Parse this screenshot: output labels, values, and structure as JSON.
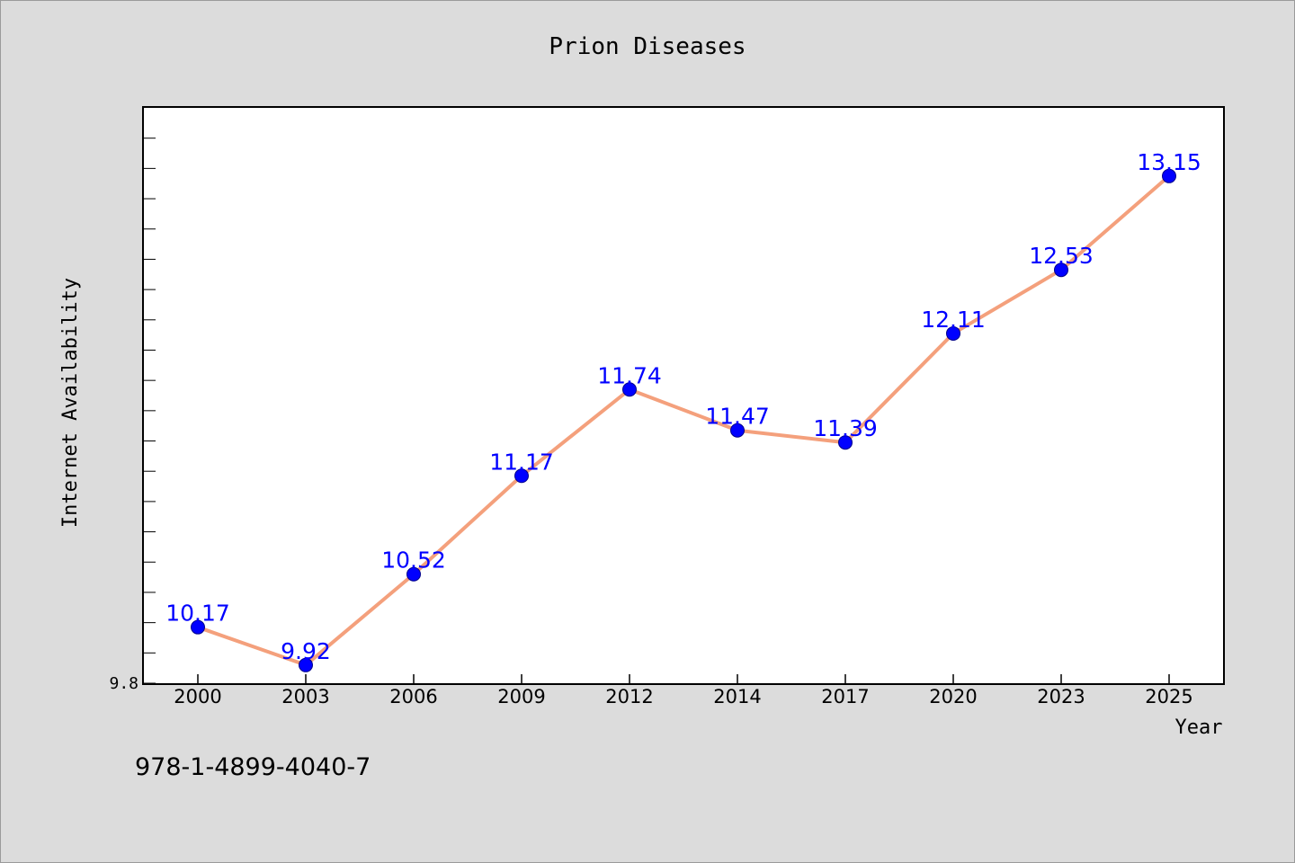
{
  "chart_data": {
    "type": "line",
    "title": "Prion Diseases",
    "xlabel": "Year",
    "ylabel": "Internet Availability",
    "categories": [
      "2000",
      "2003",
      "2006",
      "2009",
      "2012",
      "2014",
      "2017",
      "2020",
      "2023",
      "2025"
    ],
    "series": [
      {
        "values": [
          10.17,
          9.92,
          10.52,
          11.17,
          11.74,
          11.47,
          11.39,
          12.11,
          12.53,
          13.15
        ]
      }
    ],
    "data_labels": [
      "10.17",
      "9.92",
      "10.52",
      "11.17",
      "11.74",
      "11.47",
      "11.39",
      "12.11",
      "12.53",
      "13.15"
    ],
    "y_tick_labels": [
      {
        "value": 9.8,
        "label": "9.8"
      }
    ],
    "ylim": [
      9.8,
      13.6
    ],
    "y_minor_step": 0.2,
    "grid": false,
    "legend": "none",
    "colors": {
      "line": "#f4a07c",
      "marker": "#0000ff",
      "label": "#0000ff"
    }
  },
  "footer": {
    "isbn": "978-1-4899-4040-7"
  }
}
